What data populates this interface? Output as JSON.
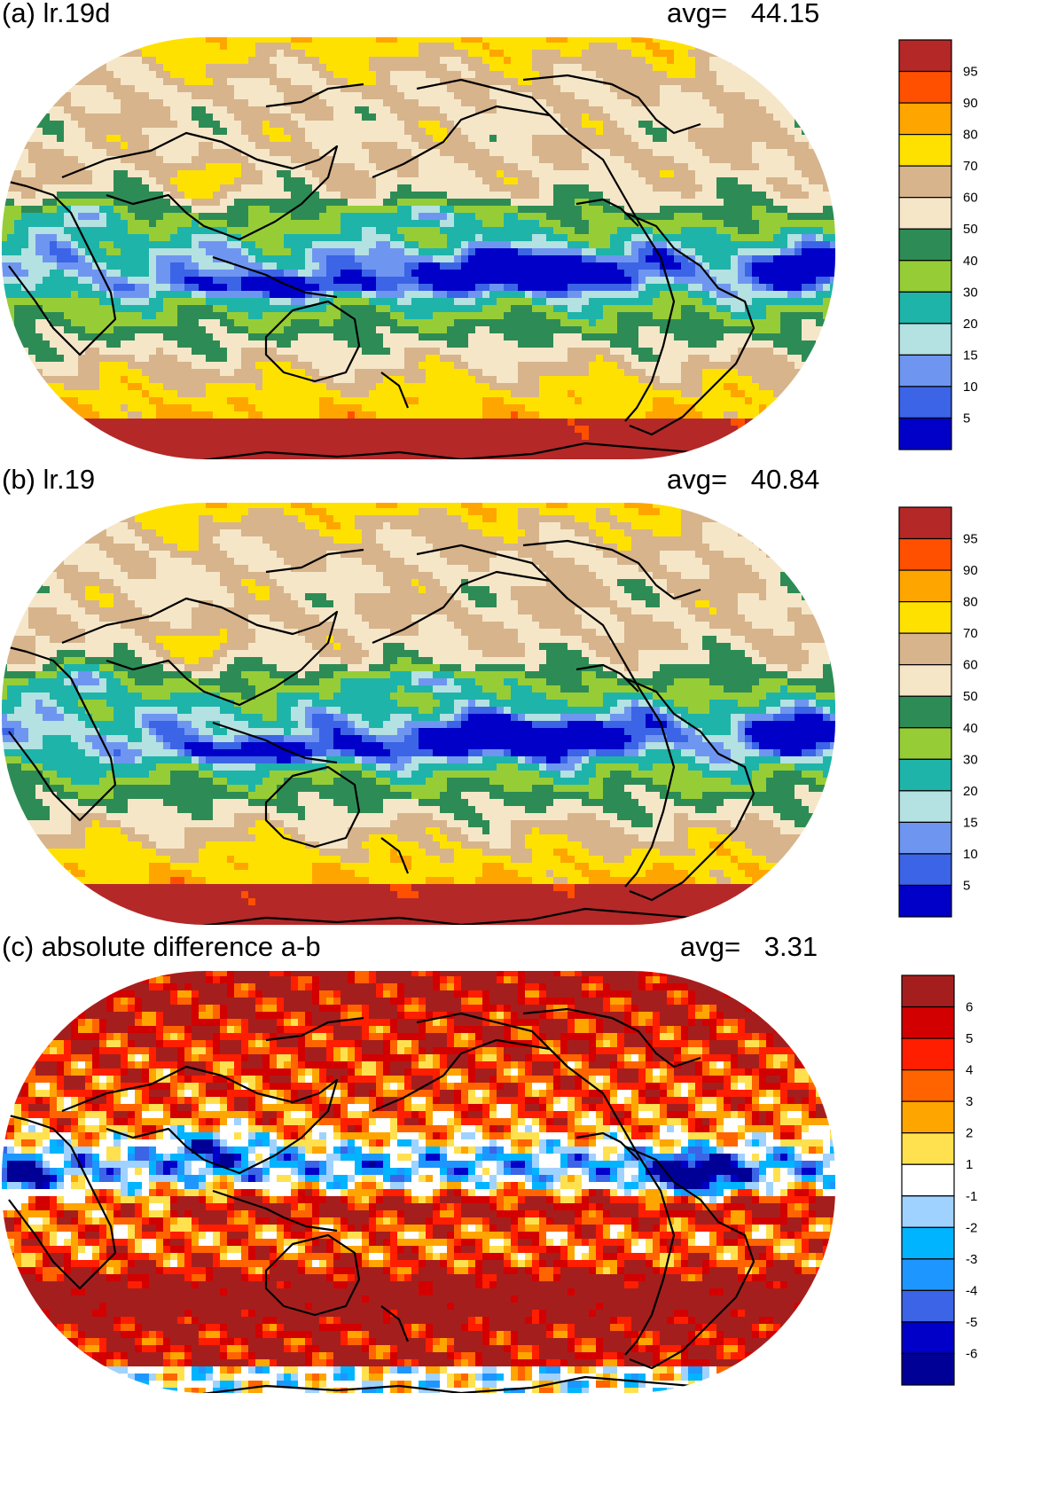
{
  "palette_main": [
    "#0000c8",
    "#3c64e6",
    "#6e96f0",
    "#b4e1e1",
    "#1eb4aa",
    "#96cd37",
    "#2d8c55",
    "#f5e6c8",
    "#d7b48c",
    "#ffe100",
    "#ffa500",
    "#ff5000",
    "#b42828"
  ],
  "palette_diff": [
    "#000096",
    "#0000c8",
    "#3c64e6",
    "#1e96ff",
    "#00b4ff",
    "#a0d2ff",
    "#ffffff",
    "#ffe150",
    "#ffa500",
    "#ff6400",
    "#ff1e00",
    "#d20000",
    "#a51e1e"
  ],
  "panels": [
    {
      "id": "a",
      "title": "(a) lr.19d",
      "avg_label": "avg=",
      "avg_value": "44.15"
    },
    {
      "id": "b",
      "title": "(b) lr.19",
      "avg_label": "avg=",
      "avg_value": "40.84"
    },
    {
      "id": "c",
      "title": "(c) absolute difference a-b",
      "avg_label": "avg=",
      "avg_value": "3.31"
    }
  ],
  "colorbars": {
    "main_labels": [
      "95",
      "90",
      "80",
      "70",
      "60",
      "50",
      "40",
      "30",
      "20",
      "15",
      "10",
      "5"
    ],
    "diff_labels": [
      "6",
      "5",
      "4",
      "3",
      "2",
      "1",
      "-1",
      "-2",
      "-3",
      "-4",
      "-5",
      "-6"
    ]
  },
  "chart_data": [
    {
      "type": "heatmap",
      "title": "(a) lr.19d",
      "annotation": "avg= 44.15",
      "projection": "Robinson",
      "legend": "right",
      "colorbar_levels": [
        5,
        10,
        15,
        20,
        30,
        40,
        50,
        60,
        70,
        80,
        90,
        95
      ]
    },
    {
      "type": "heatmap",
      "title": "(b) lr.19",
      "annotation": "avg= 40.84",
      "projection": "Robinson",
      "legend": "right",
      "colorbar_levels": [
        5,
        10,
        15,
        20,
        30,
        40,
        50,
        60,
        70,
        80,
        90,
        95
      ]
    },
    {
      "type": "heatmap",
      "title": "(c) absolute difference a-b",
      "annotation": "avg= 3.31",
      "projection": "Robinson",
      "legend": "right",
      "colorbar_levels": [
        -6,
        -5,
        -4,
        -3,
        -2,
        -1,
        1,
        2,
        3,
        4,
        5,
        6
      ]
    }
  ]
}
